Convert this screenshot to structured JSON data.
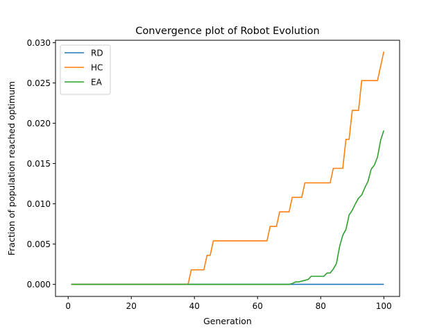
{
  "chart_data": {
    "type": "line",
    "title": "Convergence plot of  Robot Evolution",
    "xlabel": "Generation",
    "ylabel": "Fraction of population reached optimum",
    "xlim": [
      -4,
      105
    ],
    "ylim": [
      -0.0015,
      0.0303
    ],
    "xticks": [
      0,
      20,
      40,
      60,
      80,
      100
    ],
    "yticks": [
      0.0,
      0.005,
      0.01,
      0.015,
      0.02,
      0.025,
      0.03
    ],
    "xtick_labels": [
      "0",
      "20",
      "40",
      "60",
      "80",
      "100"
    ],
    "ytick_labels": [
      "0.000",
      "0.005",
      "0.010",
      "0.015",
      "0.020",
      "0.025",
      "0.030"
    ],
    "grid": false,
    "legend_position": "upper-left",
    "series": [
      {
        "name": "RD",
        "color": "#1f77b4",
        "x": [
          1,
          100
        ],
        "y": [
          0.0,
          0.0
        ]
      },
      {
        "name": "HC",
        "color": "#ff7f0e",
        "x": [
          1,
          38,
          39,
          43,
          44,
          45,
          46,
          47,
          63,
          64,
          66,
          67,
          70,
          71,
          73,
          74,
          75,
          76,
          77,
          83,
          84,
          87,
          88,
          89,
          90,
          92,
          93,
          98,
          100
        ],
        "y": [
          0.0,
          0.0,
          0.0018,
          0.0018,
          0.0036,
          0.0036,
          0.0054,
          0.0054,
          0.0054,
          0.0072,
          0.0072,
          0.009,
          0.009,
          0.0108,
          0.0108,
          0.0108,
          0.0126,
          0.0126,
          0.0126,
          0.0126,
          0.0144,
          0.0144,
          0.018,
          0.018,
          0.0216,
          0.0216,
          0.0253,
          0.0253,
          0.0289
        ]
      },
      {
        "name": "EA",
        "color": "#2ca02c",
        "x": [
          1,
          70,
          71,
          72,
          73,
          74,
          75,
          76,
          77,
          78,
          79,
          80,
          81,
          82,
          83,
          84,
          85,
          86,
          87,
          88,
          89,
          90,
          91,
          92,
          93,
          94,
          95,
          96,
          97,
          98,
          99,
          100
        ],
        "y": [
          0.0,
          0.0,
          0.0001,
          0.0003,
          0.0003,
          0.0004,
          0.0005,
          0.0006,
          0.001,
          0.001,
          0.001,
          0.001,
          0.001,
          0.0014,
          0.0014,
          0.0019,
          0.0026,
          0.0047,
          0.0061,
          0.0068,
          0.0086,
          0.0092,
          0.01,
          0.0107,
          0.0111,
          0.012,
          0.0128,
          0.0143,
          0.0148,
          0.0158,
          0.0179,
          0.0191
        ]
      }
    ]
  }
}
